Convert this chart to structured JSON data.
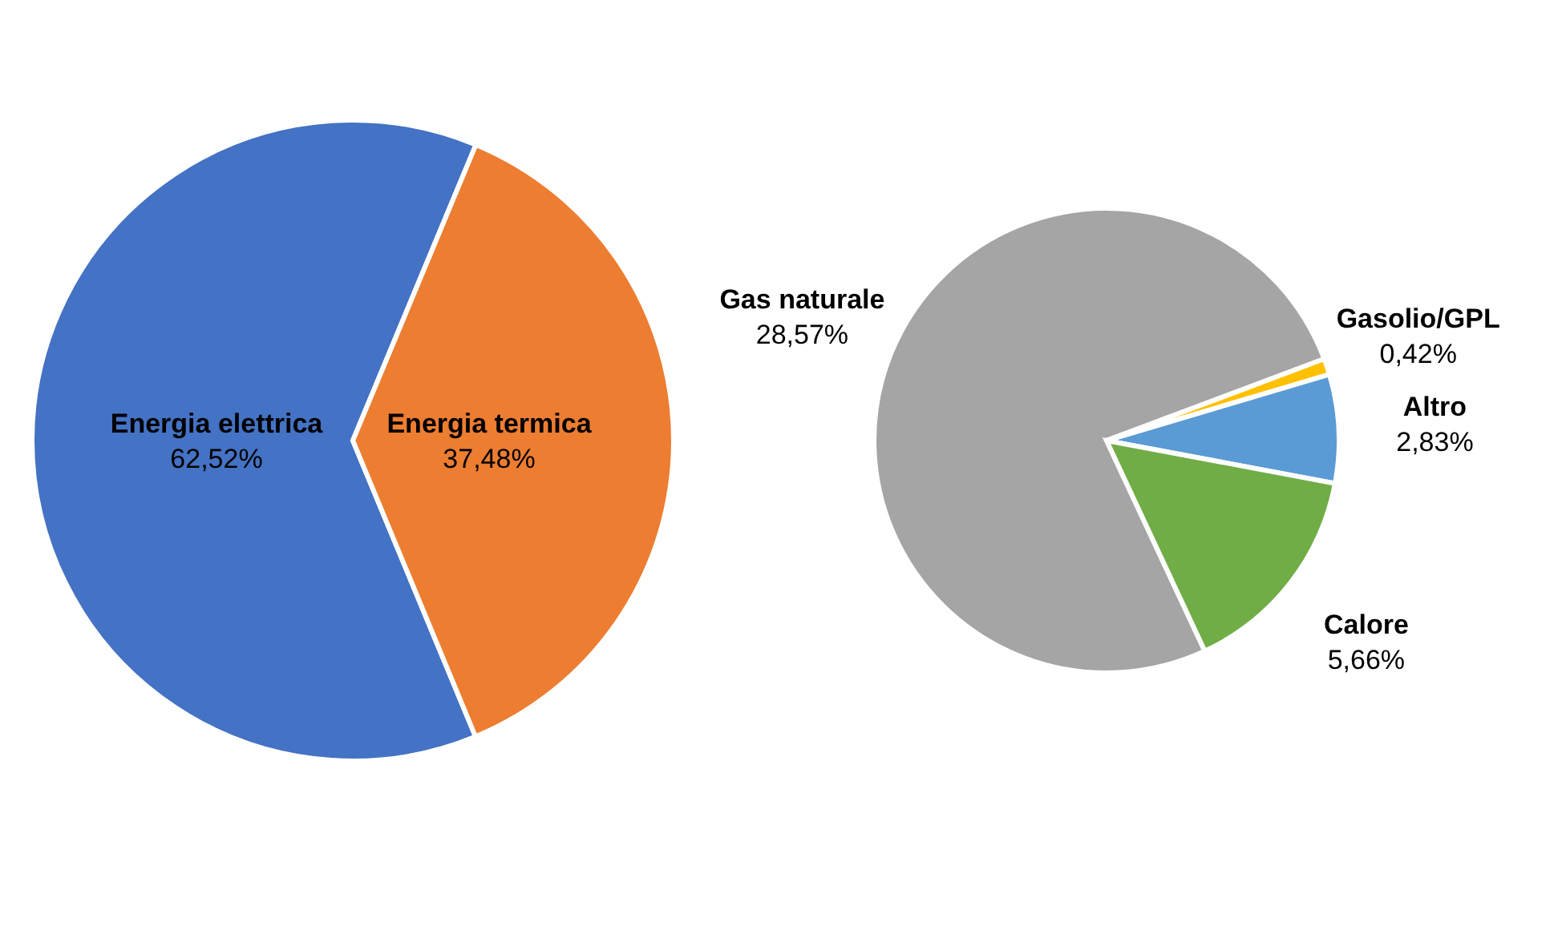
{
  "chart_data": [
    {
      "type": "pie",
      "categories": [
        "Energia elettrica",
        "Energia termica"
      ],
      "values": [
        62.52,
        37.48
      ],
      "colors": [
        "#4472c4",
        "#ed7d31"
      ],
      "value_labels": [
        "62,52%",
        "37,48%"
      ]
    },
    {
      "type": "pie",
      "categories": [
        "Gas naturale",
        "Gasolio/GPL",
        "Altro",
        "Calore"
      ],
      "values": [
        28.57,
        0.42,
        2.83,
        5.66
      ],
      "colors": [
        "#a5a5a5",
        "#ffc000",
        "#5b9bd5",
        "#70ad47"
      ],
      "value_labels": [
        "28,57%",
        "0,42%",
        "2,83%",
        "5,66%"
      ]
    }
  ]
}
